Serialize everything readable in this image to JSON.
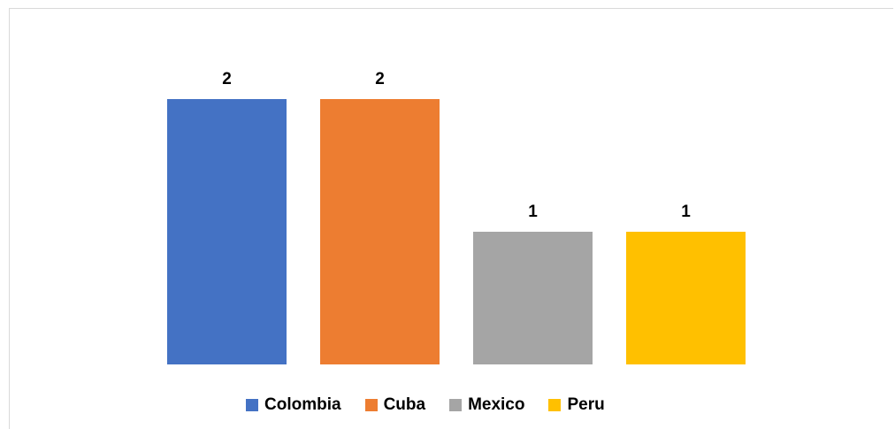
{
  "chart_data": {
    "type": "bar",
    "categories": [
      "Colombia",
      "Cuba",
      "Mexico",
      "Peru"
    ],
    "values": [
      2,
      2,
      1,
      1
    ],
    "colors": [
      "#4472c4",
      "#ed7d31",
      "#a5a5a5",
      "#ffc000"
    ],
    "data_labels": [
      "2",
      "2",
      "1",
      "1"
    ],
    "title": "",
    "xlabel": "",
    "ylabel": "",
    "ylim": [
      0,
      2
    ],
    "grid": false,
    "legend": {
      "position": "bottom",
      "items": [
        {
          "label": "Colombia",
          "color": "#4472c4"
        },
        {
          "label": "Cuba",
          "color": "#ed7d31"
        },
        {
          "label": "Mexico",
          "color": "#a5a5a5"
        },
        {
          "label": "Peru",
          "color": "#ffc000"
        }
      ]
    }
  }
}
